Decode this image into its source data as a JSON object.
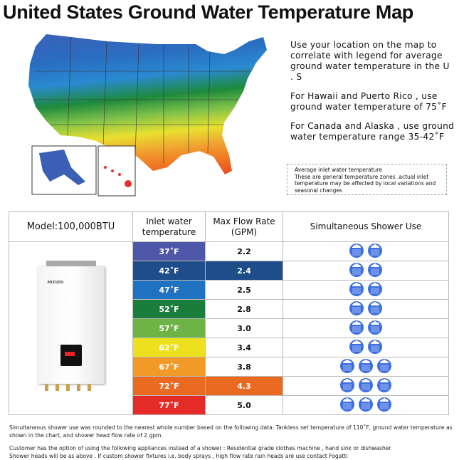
{
  "title": "United States Ground Water Temperature Map",
  "info": [
    "Use your location on the map to correlate with legend for average ground water temperature in the U . S",
    "For Hawaii and Puerto Rico , use ground water temperature of 75˚F",
    "For Canada and Alaska , use ground water temperature range 35-42˚F"
  ],
  "legend": [
    "Average inlet water temperature",
    "These are general temperature zones .actual inlet temperature may be affected by local variations and seasonal changes"
  ],
  "map_colors": [
    "#3a5fb5",
    "#1e4d8a",
    "#2a8ad0",
    "#1e8a3c",
    "#7cc04a",
    "#e8e030",
    "#f0a030",
    "#f07020",
    "#e83030"
  ],
  "table": {
    "headers": [
      "Model:100,000BTU",
      "Inlet water temperature",
      "Max Flow Rate (GPM)",
      "Simultaneous Shower Use"
    ],
    "heater_brand": "MIZUDO",
    "rows": [
      {
        "temp": "37˚F",
        "flow": "2.2",
        "showers": 2,
        "color": "#4f57a8",
        "highlight": false
      },
      {
        "temp": "42˚F",
        "flow": "2.4",
        "showers": 2,
        "color": "#1e4d8a",
        "highlight": true
      },
      {
        "temp": "47˚F",
        "flow": "2.5",
        "showers": 2,
        "color": "#1f72bf",
        "highlight": false
      },
      {
        "temp": "52˚F",
        "flow": "2.8",
        "showers": 2,
        "color": "#1a7d3c",
        "highlight": false
      },
      {
        "temp": "57˚F",
        "flow": "3.0",
        "showers": 2,
        "color": "#6db346",
        "highlight": false
      },
      {
        "temp": "62˚F",
        "flow": "3.4",
        "showers": 2,
        "color": "#ede11f",
        "highlight": false
      },
      {
        "temp": "67˚F",
        "flow": "3.8",
        "showers": 3,
        "color": "#f29a27",
        "highlight": false
      },
      {
        "temp": "72˚F",
        "flow": "4.3",
        "showers": 3,
        "color": "#ea6a22",
        "highlight": true
      },
      {
        "temp": "77˚F",
        "flow": "5.0",
        "showers": 3,
        "color": "#e52b28",
        "highlight": false
      }
    ]
  },
  "notes": [
    "Simultaneous shower use was rounded to the nearest whole number based on the following data: Tankless set temperature of 110˚F, ground water temperature as shown in the chart, and shower head flow rate of 2 gpm.",
    "Customer has the option of using the following appliances instead of a shower : Residential grade clothes machine , hand sink or dishwasher",
    "Shower heads will be as above . If custom shower fixtures i.e. body sprays , high flow rate rain heads are use contact Fogatti"
  ]
}
